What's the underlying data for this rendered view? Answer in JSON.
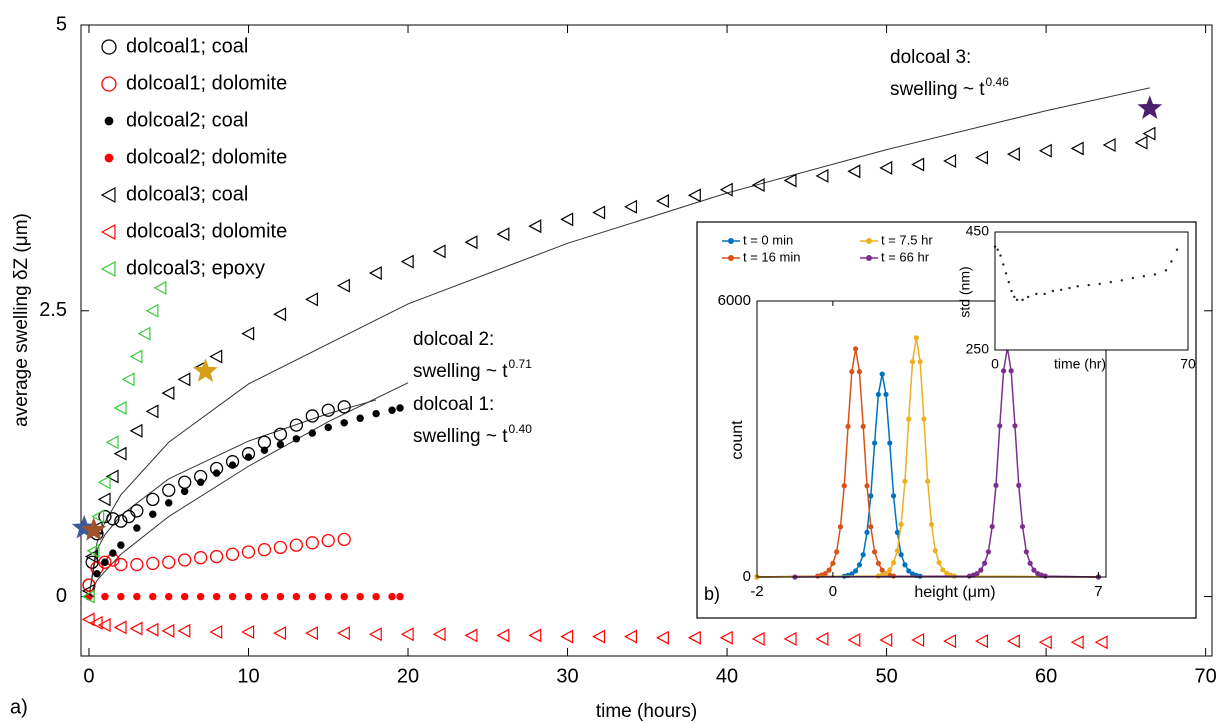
{
  "chart_data": [
    {
      "type": "scatter",
      "panel_label": "a)",
      "xlabel": "time (hours)",
      "ylabel": "average swelling δZ (μm)",
      "xlim": [
        -0.5,
        70.4
      ],
      "ylim": [
        -0.52,
        5
      ],
      "xticks": [
        0,
        10,
        20,
        30,
        40,
        50,
        60,
        70
      ],
      "yticks": [
        0,
        2.5,
        5
      ],
      "series": [
        {
          "name": "dolcoal1; coal",
          "color": "#000000",
          "marker": "circle-open",
          "x": [
            0,
            0.2,
            0.5,
            1,
            1.5,
            2,
            2.5,
            3,
            4,
            5,
            6,
            7,
            8,
            9,
            10,
            11,
            12,
            13,
            14,
            15,
            16
          ],
          "values": [
            0.1,
            0.3,
            0.55,
            0.7,
            0.68,
            0.66,
            0.7,
            0.75,
            0.85,
            0.93,
            1.0,
            1.05,
            1.12,
            1.18,
            1.25,
            1.35,
            1.42,
            1.5,
            1.58,
            1.63,
            1.66
          ]
        },
        {
          "name": "dolcoal1; dolomite",
          "color": "#ff0000",
          "marker": "circle-open",
          "x": [
            0,
            0.5,
            1,
            1.5,
            2,
            3,
            4,
            5,
            6,
            7,
            8,
            9,
            10,
            11,
            12,
            13,
            14,
            15,
            16
          ],
          "values": [
            0.1,
            0.25,
            0.3,
            0.32,
            0.28,
            0.28,
            0.29,
            0.3,
            0.32,
            0.34,
            0.35,
            0.37,
            0.39,
            0.41,
            0.43,
            0.45,
            0.47,
            0.49,
            0.5
          ]
        },
        {
          "name": "dolcoal2; coal",
          "color": "#000000",
          "marker": "circle",
          "x": [
            0,
            0.5,
            1,
            1.5,
            2,
            3,
            4,
            5,
            6,
            7,
            8,
            9,
            10,
            11,
            12,
            13,
            14,
            15,
            16,
            17,
            18,
            19,
            19.5
          ],
          "values": [
            0,
            0.2,
            0.3,
            0.38,
            0.45,
            0.6,
            0.72,
            0.82,
            0.92,
            1.0,
            1.08,
            1.15,
            1.22,
            1.28,
            1.33,
            1.38,
            1.43,
            1.48,
            1.52,
            1.56,
            1.6,
            1.63,
            1.65
          ]
        },
        {
          "name": "dolcoal2; dolomite",
          "color": "#ff0000",
          "marker": "circle",
          "x": [
            0,
            1,
            2,
            3,
            4,
            5,
            6,
            7,
            8,
            9,
            10,
            11,
            12,
            13,
            14,
            15,
            16,
            17,
            18,
            19,
            19.5
          ],
          "values": [
            0,
            0,
            0,
            0,
            0,
            0,
            0,
            0,
            0,
            0,
            0,
            0,
            0,
            0,
            0,
            0,
            0,
            0,
            0,
            0,
            0
          ]
        },
        {
          "name": "dolcoal3; coal",
          "color": "#000000",
          "marker": "triangle-open",
          "x": [
            0,
            0.2,
            0.5,
            1,
            1.5,
            2,
            3,
            4,
            5,
            6,
            7,
            8,
            10,
            12,
            14,
            16,
            18,
            20,
            22,
            24,
            26,
            28,
            30,
            32,
            34,
            36,
            38,
            40,
            42,
            44,
            46,
            48,
            50,
            52,
            54,
            56,
            58,
            60,
            62,
            64,
            66,
            66.5
          ],
          "values": [
            0.05,
            0.35,
            0.6,
            0.85,
            1.05,
            1.25,
            1.45,
            1.62,
            1.78,
            1.9,
            2.0,
            2.1,
            2.3,
            2.47,
            2.6,
            2.72,
            2.83,
            2.93,
            3.02,
            3.1,
            3.17,
            3.24,
            3.3,
            3.36,
            3.41,
            3.46,
            3.51,
            3.56,
            3.6,
            3.64,
            3.68,
            3.72,
            3.75,
            3.78,
            3.81,
            3.84,
            3.87,
            3.9,
            3.92,
            3.95,
            3.97,
            4.05
          ]
        },
        {
          "name": "dolcoal3; dolomite",
          "color": "#ff0000",
          "marker": "triangle-open",
          "x": [
            0,
            0.5,
            1,
            2,
            3,
            4,
            5,
            6,
            8,
            10,
            12,
            14,
            16,
            18,
            20,
            22,
            24,
            26,
            28,
            30,
            32,
            34,
            36,
            38,
            40,
            42,
            44,
            46,
            48,
            50,
            52,
            54,
            56,
            58,
            60,
            62,
            63.5
          ],
          "values": [
            -0.2,
            -0.23,
            -0.25,
            -0.27,
            -0.28,
            -0.29,
            -0.3,
            -0.3,
            -0.31,
            -0.31,
            -0.32,
            -0.32,
            -0.32,
            -0.33,
            -0.33,
            -0.33,
            -0.34,
            -0.34,
            -0.34,
            -0.35,
            -0.35,
            -0.35,
            -0.36,
            -0.36,
            -0.36,
            -0.37,
            -0.37,
            -0.37,
            -0.38,
            -0.38,
            -0.38,
            -0.39,
            -0.39,
            -0.39,
            -0.4,
            -0.4,
            -0.4
          ]
        },
        {
          "name": "dolcoal3; epoxy",
          "color": "#33cc33",
          "marker": "triangle-open",
          "x": [
            0,
            0.3,
            0.6,
            1,
            1.5,
            2,
            2.5,
            3,
            3.5,
            4,
            4.5
          ],
          "values": [
            0,
            0.4,
            0.7,
            1.0,
            1.35,
            1.65,
            1.9,
            2.1,
            2.3,
            2.5,
            2.7
          ]
        }
      ],
      "fits": [
        {
          "x": [
            0,
            0.5,
            1,
            2,
            5,
            10,
            20,
            30,
            40,
            50,
            60,
            66.5
          ],
          "values": [
            0,
            0.47,
            0.65,
            0.89,
            1.35,
            1.86,
            2.56,
            3.09,
            3.53,
            3.91,
            4.25,
            4.45
          ]
        },
        {
          "x": [
            0,
            0.5,
            1,
            2,
            5,
            10,
            15,
            20
          ],
          "values": [
            0,
            0.14,
            0.22,
            0.37,
            0.7,
            1.14,
            1.53,
            1.87
          ]
        },
        {
          "x": [
            0,
            0.5,
            1,
            2,
            5,
            10,
            15,
            18
          ],
          "values": [
            0,
            0.41,
            0.54,
            0.71,
            1.03,
            1.36,
            1.6,
            1.72
          ]
        }
      ],
      "stars": [
        {
          "x": -0.3,
          "y": 0.6,
          "color": "#3a5a9a"
        },
        {
          "x": 0.3,
          "y": 0.58,
          "color": "#a0522d"
        },
        {
          "x": 7.3,
          "y": 1.97,
          "color": "#d4a017"
        },
        {
          "x": 66.5,
          "y": 4.27,
          "color": "#4b1e6e"
        }
      ],
      "annotations": [
        {
          "label": "dolcoal 3:",
          "formula": "swelling ~ t",
          "exponent": "0.46"
        },
        {
          "label": "dolcoal 2:",
          "formula": "swelling ~ t",
          "exponent": "0.71"
        },
        {
          "label": "dolcoal 1:",
          "formula": "swelling ~ t",
          "exponent": "0.40"
        }
      ]
    },
    {
      "type": "line",
      "panel_label": "b)",
      "xlabel": "height (μm)",
      "ylabel": "count",
      "xlim": [
        -2,
        7.2
      ],
      "ylim": [
        0,
        6000
      ],
      "xticks": [
        -2,
        0,
        7
      ],
      "yticks": [
        0,
        6000
      ],
      "series": [
        {
          "name": "t = 0 min",
          "color": "#0072bd",
          "x": [
            -2,
            0.3,
            0.4,
            0.5,
            0.6,
            0.7,
            0.8,
            0.9,
            1,
            1.1,
            1.2,
            1.3,
            1.4,
            1.5,
            1.6,
            1.7,
            1.8,
            1.9,
            2,
            2.1,
            2.2,
            2.3,
            7
          ],
          "values": [
            0,
            18,
            35,
            66,
            132,
            265,
            485,
            970,
            1764,
            2911,
            3969,
            4410,
            3969,
            2911,
            1764,
            970,
            485,
            265,
            132,
            66,
            35,
            18,
            0
          ]
        },
        {
          "name": "t = 16 min",
          "color": "#d95319",
          "x": [
            -2,
            -0.4,
            -0.3,
            -0.2,
            -0.1,
            0,
            0.1,
            0.2,
            0.3,
            0.4,
            0.5,
            0.6,
            0.7,
            0.8,
            0.9,
            1,
            1.1,
            1.2,
            1.3,
            1.4,
            1.5,
            1.6,
            7
          ],
          "values": [
            0,
            20,
            40,
            74,
            149,
            298,
            546,
            1091,
            1984,
            3274,
            4464,
            4960,
            4464,
            3274,
            1984,
            1091,
            546,
            298,
            149,
            74,
            40,
            20,
            0
          ]
        },
        {
          "name": "t = 7.5 hr",
          "color": "#edb120",
          "x": [
            -2,
            1.2,
            1.3,
            1.4,
            1.5,
            1.6,
            1.7,
            1.8,
            1.9,
            2,
            2.1,
            2.2,
            2.3,
            2.4,
            2.5,
            2.6,
            2.7,
            2.8,
            2.9,
            3,
            3.1,
            3.2,
            7
          ],
          "values": [
            0,
            21,
            42,
            78,
            156,
            312,
            572,
            1144,
            2080,
            3432,
            4680,
            5200,
            4680,
            3432,
            2080,
            1144,
            572,
            312,
            156,
            78,
            42,
            21,
            0
          ]
        },
        {
          "name": "t = 66 hr",
          "color": "#7e2f8e",
          "x": [
            -1,
            3.6,
            3.7,
            3.8,
            3.9,
            4,
            4.1,
            4.2,
            4.3,
            4.4,
            4.5,
            4.6,
            4.7,
            4.8,
            4.9,
            5,
            5.1,
            5.2,
            5.3,
            5.4,
            5.5,
            5.6,
            7
          ],
          "values": [
            0,
            20,
            40,
            75,
            149,
            299,
            548,
            1096,
            1992,
            3287,
            4482,
            4980,
            4482,
            3287,
            1992,
            1096,
            548,
            299,
            149,
            75,
            40,
            20,
            0
          ]
        }
      ]
    },
    {
      "type": "scatter",
      "xlabel": "time (hr)",
      "ylabel": "std (nm)",
      "xlim": [
        0,
        70
      ],
      "ylim": [
        250,
        450
      ],
      "xticks": [
        0,
        70
      ],
      "yticks": [
        250,
        450
      ],
      "series": [
        {
          "color": "#222222",
          "marker": "dot",
          "x": [
            0,
            1,
            2,
            3,
            4,
            5,
            6,
            7,
            8,
            10,
            12,
            15,
            18,
            21,
            24,
            27,
            30,
            34,
            38,
            42,
            46,
            50,
            54,
            58,
            62,
            64,
            66
          ],
          "values": [
            425,
            420,
            410,
            395,
            380,
            365,
            350,
            340,
            335,
            335,
            340,
            345,
            345,
            350,
            352,
            355,
            358,
            360,
            362,
            365,
            368,
            372,
            375,
            378,
            385,
            400,
            420
          ]
        }
      ]
    }
  ]
}
